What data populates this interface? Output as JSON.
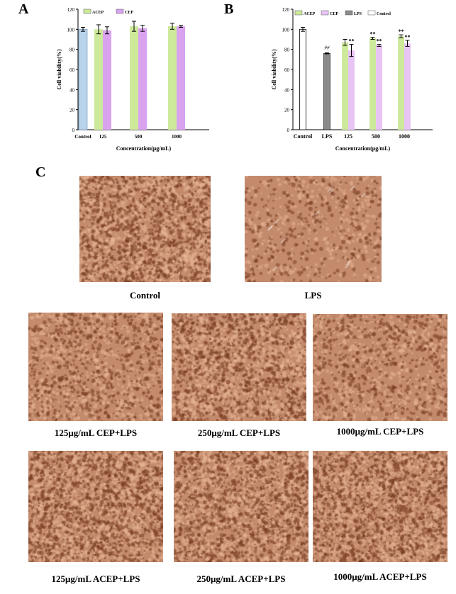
{
  "panels": {
    "a": "A",
    "b": "B",
    "c": "C"
  },
  "colors": {
    "acep": "#cde99a",
    "cep": "#d9a3f0",
    "cep_b": "#e8c4f5",
    "lps": "#8a8a8a",
    "control_a": "#b9d3ea",
    "control_b": "#ffffff"
  },
  "chart_data": [
    {
      "type": "bar",
      "xlabel": "Concentration(μg/mL)",
      "ylabel": "Cell viability(%)",
      "ylim": [
        0,
        120
      ],
      "yticks": [
        0,
        20,
        40,
        60,
        80,
        100,
        120
      ],
      "categories": [
        "Control",
        "125",
        "500",
        "1000"
      ],
      "legend": {
        "placement": "top",
        "entries": [
          "ACEP",
          "CEP"
        ]
      },
      "control": {
        "label": "Control",
        "value": 100,
        "error": 2
      },
      "series": [
        {
          "name": "ACEP",
          "values": [
            null,
            100,
            103,
            103
          ],
          "errors": [
            null,
            4.5,
            5,
            3
          ]
        },
        {
          "name": "CEP",
          "values": [
            null,
            99,
            101,
            103
          ],
          "errors": [
            null,
            3.5,
            3,
            1
          ]
        }
      ]
    },
    {
      "type": "bar",
      "xlabel": "Concentration(μg/mL)",
      "ylabel": "Cell viability(%)",
      "ylim": [
        0,
        120
      ],
      "yticks": [
        0,
        20,
        40,
        60,
        80,
        100,
        120
      ],
      "categories": [
        "Control",
        "LPS",
        "125",
        "500",
        "1000"
      ],
      "legend": {
        "placement": "top",
        "entries": [
          "ACEP",
          "CEP",
          "LPS",
          "Control"
        ]
      },
      "control": {
        "label": "Control",
        "value": 100,
        "error": 2
      },
      "lps": {
        "label": "LPS",
        "value": 76,
        "error": 0.5,
        "annotation": "##"
      },
      "series": [
        {
          "name": "ACEP",
          "values": [
            null,
            null,
            87,
            91,
            93
          ],
          "errors": [
            null,
            null,
            3,
            1,
            1.5
          ],
          "annotations": [
            null,
            null,
            "",
            "**",
            "**"
          ]
        },
        {
          "name": "CEP",
          "values": [
            null,
            null,
            79,
            84,
            86
          ],
          "errors": [
            null,
            null,
            6,
            1,
            3
          ],
          "annotations": [
            null,
            null,
            "**",
            "**",
            "**"
          ]
        }
      ]
    }
  ],
  "micrographs": [
    {
      "label": "Control"
    },
    {
      "label": "LPS"
    },
    {
      "label": "125μg/mL CEP+LPS"
    },
    {
      "label": "250μg/mL CEP+LPS"
    },
    {
      "label": "1000μg/mL CEP+LPS"
    },
    {
      "label": "125μg/mL ACEP+LPS"
    },
    {
      "label": "250μg/mL ACEP+LPS"
    },
    {
      "label": "1000μg/mL ACEP+LPS"
    }
  ]
}
